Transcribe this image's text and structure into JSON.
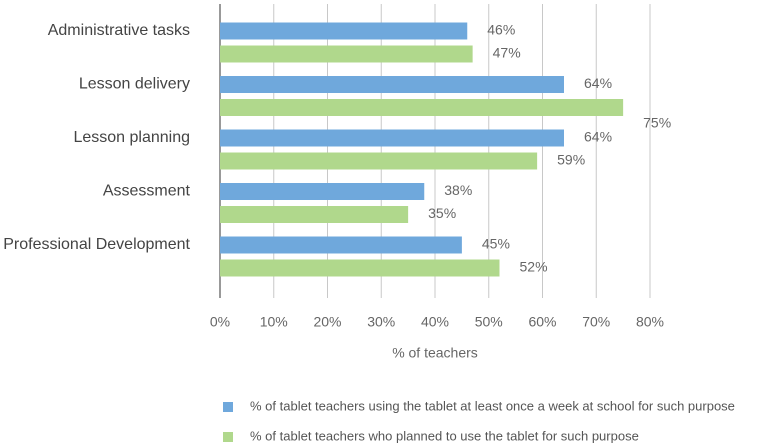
{
  "chart_data": {
    "type": "bar",
    "orientation": "horizontal",
    "x_label": "% of teachers",
    "categories": [
      "Administrative tasks",
      "Lesson delivery",
      "Lesson planning",
      "Assessment",
      "Professional Development"
    ],
    "series": [
      {
        "name": "% of tablet teachers using the tablet at least once a week at school for such purpose",
        "color": "#6fa8dc",
        "values": [
          46,
          64,
          64,
          38,
          45
        ],
        "value_labels": [
          "46%",
          "64%",
          "64%",
          "38%",
          "45%"
        ]
      },
      {
        "name": "% of tablet teachers who planned to use the tablet for such purpose",
        "color": "#b0d88c",
        "values": [
          47,
          75,
          59,
          35,
          52
        ],
        "value_labels": [
          "47%",
          "75%",
          "59%",
          "35%",
          "52%"
        ]
      }
    ],
    "xlim": [
      0,
      80
    ],
    "xticks": [
      {
        "value": 0,
        "label": "0%"
      },
      {
        "value": 10,
        "label": "10%"
      },
      {
        "value": 20,
        "label": "20%"
      },
      {
        "value": 30,
        "label": "30%"
      },
      {
        "value": 40,
        "label": "40%"
      },
      {
        "value": 50,
        "label": "50%"
      },
      {
        "value": 60,
        "label": "60%"
      },
      {
        "value": 70,
        "label": "70%"
      },
      {
        "value": 80,
        "label": "80%"
      }
    ],
    "grid": true
  }
}
